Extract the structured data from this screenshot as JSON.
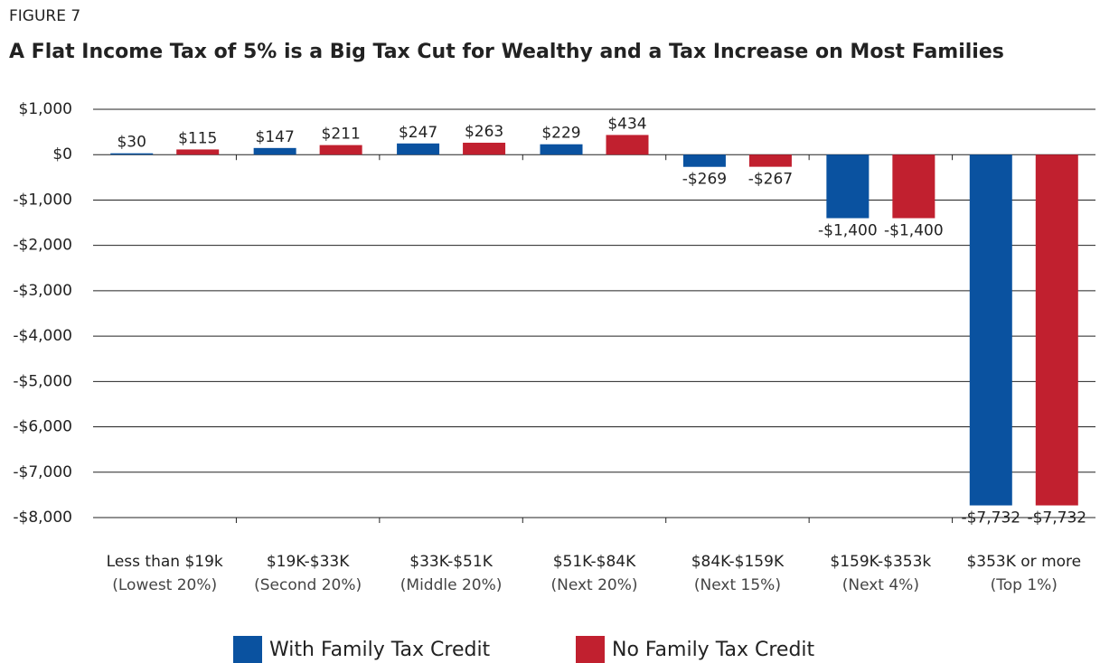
{
  "chart_data": {
    "type": "bar",
    "figure_label": "FIGURE 7",
    "title": "A Flat Income Tax of 5% is a Big Tax Cut for Wealthy and a Tax Increase on Most Families",
    "categories": [
      [
        "Less than $19k",
        "(Lowest 20%)"
      ],
      [
        "$19K-$33K",
        "(Second 20%)"
      ],
      [
        "$33K-$51K",
        "(Middle 20%)"
      ],
      [
        "$51K-$84K",
        "(Next 20%)"
      ],
      [
        "$84K-$159K",
        "(Next 15%)"
      ],
      [
        "$159K-$353k",
        "(Next 4%)"
      ],
      [
        "$353K or more",
        "(Top 1%)"
      ]
    ],
    "series": [
      {
        "name": "With Family Tax Credit",
        "color": "#0a52a0",
        "values": [
          30,
          147,
          247,
          229,
          -269,
          -1400,
          -7732
        ],
        "value_labels": [
          "$30",
          "$147",
          "$247",
          "$229",
          "-$269",
          "-$1,400",
          "-$7,732"
        ]
      },
      {
        "name": "No Family Tax Credit",
        "color": "#c1202f",
        "values": [
          115,
          211,
          263,
          434,
          -267,
          -1400,
          -7732
        ],
        "value_labels": [
          "$115",
          "$211",
          "$263",
          "$434",
          "-$267",
          "-$1,400",
          "-$7,732"
        ]
      }
    ],
    "ylim": [
      -8000,
      1000
    ],
    "yticks": [
      {
        "value": -8000,
        "label": "-$8,000"
      },
      {
        "value": -7000,
        "label": "-$7,000"
      },
      {
        "value": -6000,
        "label": "-$6,000"
      },
      {
        "value": -5000,
        "label": "-$5,000"
      },
      {
        "value": -4000,
        "label": "-$4,000"
      },
      {
        "value": -3000,
        "label": "-$3,000"
      },
      {
        "value": -2000,
        "label": "-$2,000"
      },
      {
        "value": -1000,
        "label": "-$1,000"
      },
      {
        "value": 0,
        "label": "$0"
      },
      {
        "value": 1000,
        "label": "$1,000"
      }
    ],
    "grid": true,
    "legend": "bottom"
  }
}
